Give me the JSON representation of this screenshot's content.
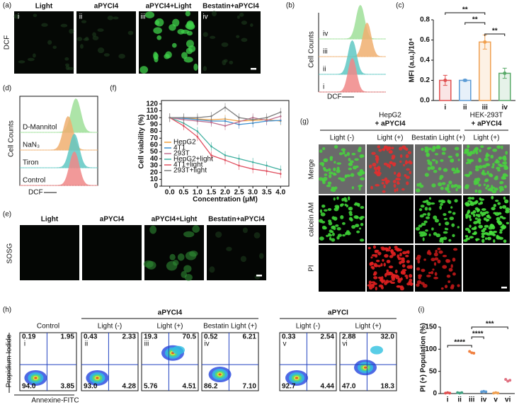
{
  "figure": {
    "a": {
      "label": "(a)",
      "row_label": "DCF",
      "panels": [
        {
          "title": "Light",
          "numeral": "i"
        },
        {
          "title": "aPYCI4",
          "numeral": "ii"
        },
        {
          "title": "aPYCI4+Light",
          "numeral": "iii"
        },
        {
          "title": "Bestatin+aPYCI4",
          "numeral": "iv"
        }
      ]
    },
    "b": {
      "label": "(b)",
      "y_label": "Cell Counts",
      "x_label": "DCF",
      "traces": [
        "iv",
        "iii",
        "ii",
        "i"
      ]
    },
    "d": {
      "label": "(d)",
      "y_label": "Cell Counts",
      "x_label": "DCF",
      "traces": [
        "D-Mannitol",
        "NaN₃",
        "Tiron",
        "Control"
      ]
    },
    "e": {
      "label": "(e)",
      "row_label": "SOSG",
      "panels": [
        "Light",
        "aPYCI4",
        "aPYCI4+Light",
        "Bestatin+aPYCI4"
      ]
    },
    "g": {
      "label": "(g)",
      "groups": [
        {
          "title": "HepG2",
          "subtitle": "+ aPYCI4"
        },
        {
          "title": "HEK-293T",
          "subtitle": "+ aPYCI4"
        }
      ],
      "columns": [
        "Light (-)",
        "Light (+)",
        "Bestatin Light (+)",
        "Light (+)"
      ],
      "rows": [
        "Merge",
        "calcein AM",
        "PI"
      ]
    },
    "h": {
      "label": "(h)",
      "groups": [
        "aPYCI4",
        "aPYCI"
      ],
      "y_label": "Propidium Iodide",
      "x_label": "Annexine-FITC",
      "plots": [
        {
          "numeral": "i",
          "condition": "Control",
          "quadrants": [
            "0.19",
            "1.95",
            "94.0",
            "3.85"
          ]
        },
        {
          "numeral": "ii",
          "condition": "Light (-)",
          "quadrants": [
            "0.43",
            "2.33",
            "93.0",
            "4.28"
          ]
        },
        {
          "numeral": "iii",
          "condition": "Light (+)",
          "quadrants": [
            "19.3",
            "70.5",
            "5.76",
            "4.51"
          ]
        },
        {
          "numeral": "iv",
          "condition": "Bestatin Light (+)",
          "quadrants": [
            "0.52",
            "6.21",
            "86.2",
            "7.10"
          ]
        },
        {
          "numeral": "v",
          "condition": "Light (-)",
          "quadrants": [
            "0.33",
            "2.54",
            "92.7",
            "4.44"
          ]
        },
        {
          "numeral": "vi",
          "condition": "Light (+)",
          "quadrants": [
            "2.88",
            "32.0",
            "47.0",
            "18.3"
          ]
        }
      ]
    }
  },
  "chart_data": [
    {
      "type": "bar",
      "panel_label": "(c)",
      "ylabel": "MFI (a.u.)/10⁴",
      "categories": [
        "i",
        "ii",
        "iii",
        "iv"
      ],
      "values": [
        0.2,
        0.2,
        0.58,
        0.27
      ],
      "errors": [
        0.05,
        0.01,
        0.07,
        0.05
      ],
      "colors": [
        "#e05050",
        "#5b9bd5",
        "#f0a050",
        "#5aaa6a"
      ],
      "ylim": [
        0,
        0.8
      ],
      "yticks": [
        {
          "value": 0,
          "label": "0.0"
        },
        0.2,
        0.4,
        0.6,
        0.8
      ],
      "annotations": [
        "**",
        "**",
        "**"
      ]
    },
    {
      "type": "line",
      "panel_label": "(f)",
      "xlabel": "Concentration (μM)",
      "ylabel": "Cell viability (%)",
      "x": [
        0,
        0.5,
        1,
        1.5,
        2,
        2.5,
        3,
        3.5,
        4
      ],
      "xlim": [
        -0.3,
        4.3
      ],
      "xticks": [
        {
          "value": 0,
          "label": "0.0"
        },
        0.5,
        {
          "value": 1,
          "label": "1.0"
        },
        1.5,
        {
          "value": 2,
          "label": "2.0"
        },
        2.5,
        {
          "value": 3,
          "label": "3.0"
        },
        3.5,
        {
          "value": 4,
          "label": "4.0"
        }
      ],
      "ylim": [
        0,
        125
      ],
      "yticks": [
        0,
        10,
        20,
        30,
        40,
        50,
        60,
        70,
        80,
        90,
        100,
        110,
        120
      ],
      "series": [
        {
          "name": "HepG2",
          "color": "#f0a040",
          "values": [
            100,
            100,
            98,
            97,
            98,
            95,
            96,
            97,
            95
          ]
        },
        {
          "name": "4T1",
          "color": "#3b8fd0",
          "values": [
            100,
            99,
            97,
            95,
            95,
            90,
            92,
            95,
            96
          ]
        },
        {
          "name": "293T",
          "color": "#c07090",
          "values": [
            100,
            97,
            95,
            93,
            88,
            94,
            100,
            96,
            102
          ]
        },
        {
          "name": "HepG2+light",
          "color": "#40b0a0",
          "values": [
            100,
            92,
            80,
            58,
            45,
            40,
            35,
            30,
            24
          ]
        },
        {
          "name": "4T1+light",
          "color": "#e05060",
          "values": [
            100,
            88,
            72,
            45,
            38,
            30,
            25,
            22,
            18
          ]
        },
        {
          "name": "293T+light",
          "color": "#808080",
          "values": [
            100,
            100,
            100,
            102,
            115,
            100,
            97,
            100,
            108
          ]
        }
      ]
    },
    {
      "type": "dot",
      "panel_label": "(i)",
      "ylabel": "PI (+) Population (%)",
      "categories": [
        "i",
        "ii",
        "iii",
        "iv",
        "v",
        "vi"
      ],
      "values": [
        [
          1,
          2,
          1
        ],
        [
          2,
          1,
          2
        ],
        [
          95,
          92,
          91
        ],
        [
          4,
          5,
          4
        ],
        [
          1,
          2,
          1
        ],
        [
          32,
          28,
          30
        ]
      ],
      "colors": [
        "#e05050",
        "#40a080",
        "#f08040",
        "#5b9bd5",
        "#f0a050",
        "#e07080"
      ],
      "ylim": [
        0,
        150
      ],
      "yticks": [
        0,
        50,
        100,
        150
      ],
      "annotations": [
        "****",
        "****",
        "***"
      ]
    }
  ]
}
